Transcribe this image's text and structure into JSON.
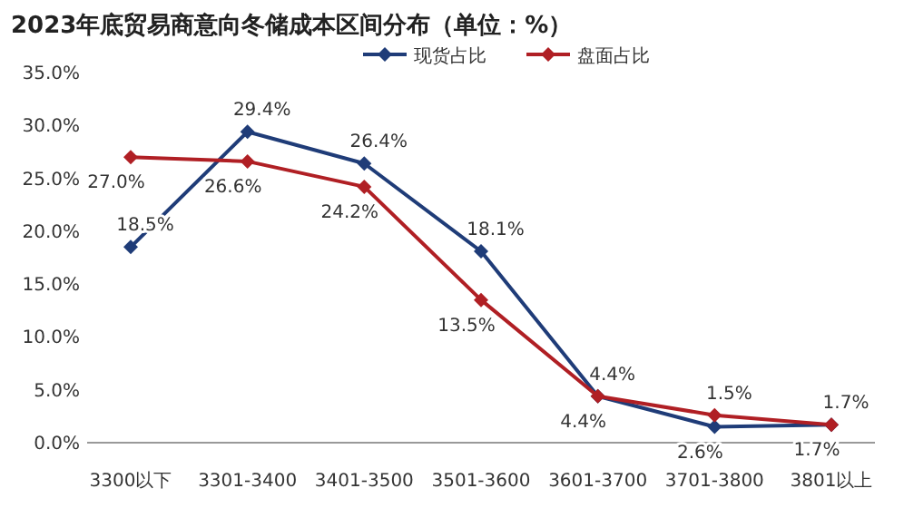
{
  "chart_data": {
    "type": "line",
    "title": "2023年底贸易商意向冬储成本区间分布（单位：%）",
    "categories": [
      "3300以下",
      "3301-3400",
      "3401-3500",
      "3501-3600",
      "3601-3700",
      "3701-3800",
      "3801以上"
    ],
    "series": [
      {
        "name": "现货占比",
        "color": "#1f3c78",
        "values": [
          18.5,
          29.4,
          26.4,
          18.1,
          4.4,
          1.5,
          1.7
        ],
        "value_labels": [
          "18.5%",
          "29.4%",
          "26.4%",
          "18.1%",
          "4.4%",
          "1.5%",
          "1.7%"
        ]
      },
      {
        "name": "盘面占比",
        "color": "#b01f24",
        "values": [
          27.0,
          26.6,
          24.2,
          13.5,
          4.4,
          2.6,
          1.7
        ],
        "value_labels": [
          "27.0%",
          "26.6%",
          "24.2%",
          "13.5%",
          "4.4%",
          "2.6%",
          "1.7%"
        ]
      }
    ],
    "ylim": [
      0,
      35
    ],
    "yticks": [
      {
        "value": 0,
        "label": "0.0%"
      },
      {
        "value": 5,
        "label": "5.0%"
      },
      {
        "value": 10,
        "label": "10.0%"
      },
      {
        "value": 15,
        "label": "15.0%"
      },
      {
        "value": 20,
        "label": "20.0%"
      },
      {
        "value": 25,
        "label": "25.0%"
      },
      {
        "value": 30,
        "label": "30.0%"
      },
      {
        "value": 35,
        "label": "35.0%"
      }
    ],
    "legend": "top",
    "marker": "diamond",
    "line_style": "solid",
    "grid": false
  }
}
